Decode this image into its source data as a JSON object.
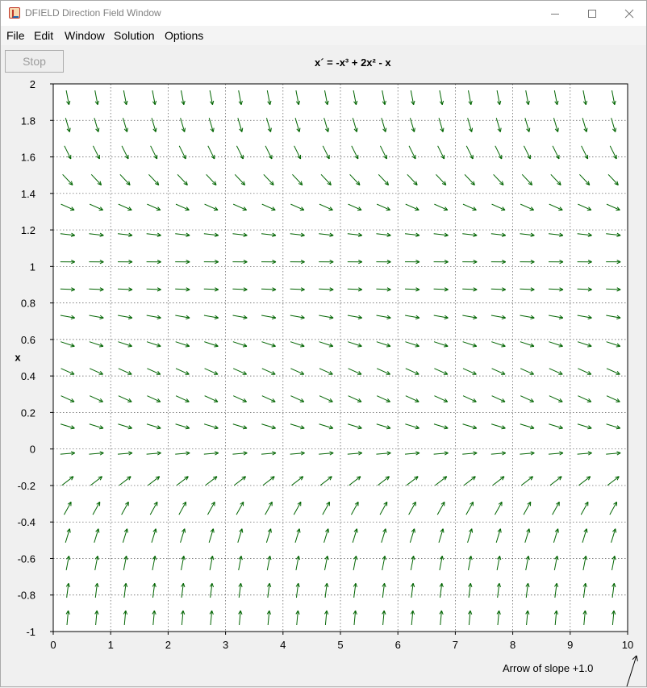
{
  "window": {
    "title": "DFIELD Direction Field Window"
  },
  "menubar": {
    "items": [
      "File",
      "Edit",
      "Window",
      "Solution",
      "Options"
    ]
  },
  "toolbar": {
    "stop_label": "Stop"
  },
  "equation": "x´ = -x³ + 2x² - x",
  "chart_data": {
    "type": "scatter",
    "title": "x´ = -x³ + 2x² - x",
    "xlabel": "",
    "ylabel": "x",
    "xlim": [
      0,
      10
    ],
    "ylim": [
      -1,
      2
    ],
    "x_ticks": [
      0,
      1,
      2,
      3,
      4,
      5,
      6,
      7,
      8,
      9,
      10
    ],
    "y_ticks": [
      -1,
      -0.8,
      -0.6,
      -0.4,
      -0.2,
      0,
      0.2,
      0.4,
      0.6,
      0.8,
      1,
      1.2,
      1.4,
      1.6,
      1.8,
      2
    ],
    "grid": true,
    "field": "direction field arrows",
    "arrow_color": "#006400",
    "grid_x_count": 20,
    "grid_y_count": 20
  },
  "slope_indicator": {
    "caption": "Arrow of slope +1.0",
    "slope": 1.0
  }
}
